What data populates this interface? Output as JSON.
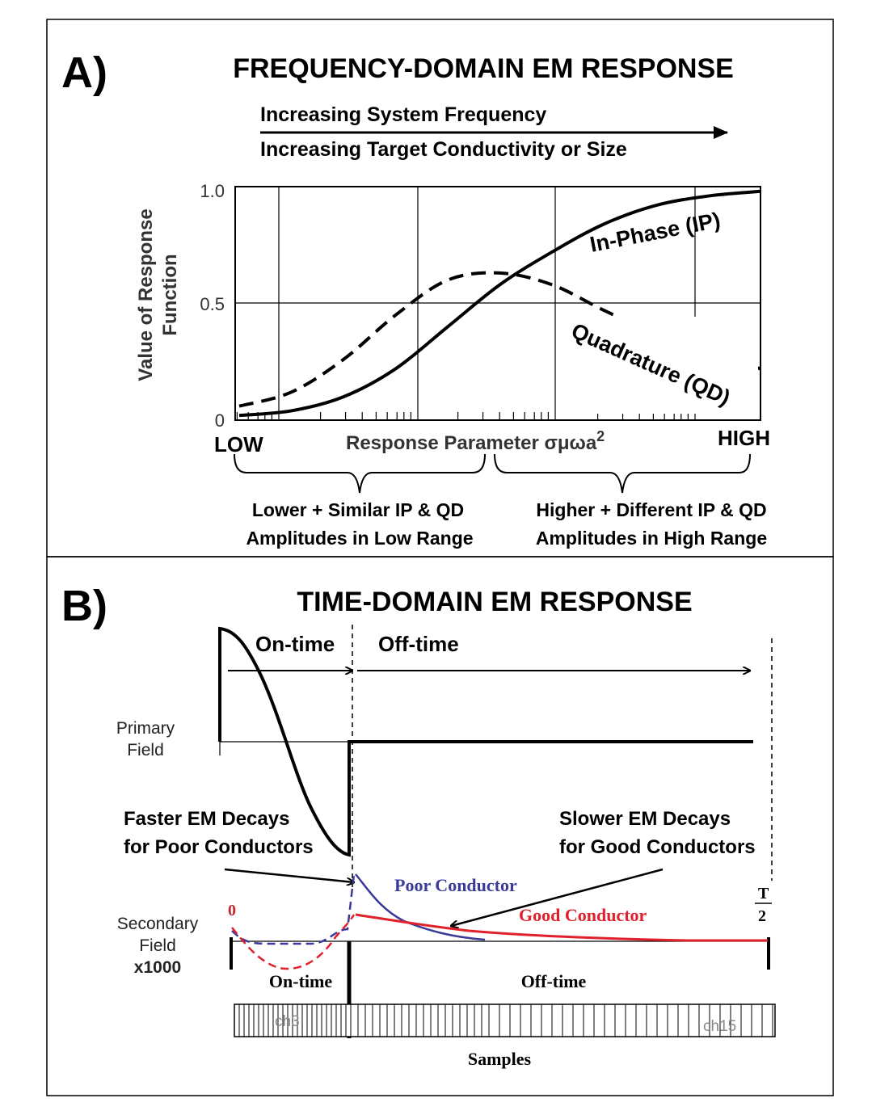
{
  "panel_a": {
    "label": "A)",
    "title": "FREQUENCY-DOMAIN EM RESPONSE",
    "arrow_line1": "Increasing System Frequency",
    "arrow_line2": "Increasing Target Conductivity or Size",
    "ylabel_line1": "Value of Response",
    "ylabel_line2": "Function",
    "yticks": [
      "1.0",
      "0.5",
      "0"
    ],
    "xlabel": "Response Parameter σμωa",
    "xlabel_sup": "2",
    "low_label": "LOW",
    "high_label": "HIGH",
    "ip_label": "In-Phase (IP)",
    "qd_label": "Quadrature (QD)",
    "low_range_line1": "Lower + Similar IP & QD",
    "low_range_line2": "Amplitudes in Low Range",
    "high_range_line1": "Higher + Different IP & QD",
    "high_range_line2": "Amplitudes in High Range"
  },
  "panel_b": {
    "label": "B)",
    "title": "TIME-DOMAIN EM RESPONSE",
    "on_time_top": "On-time",
    "off_time_top": "Off-time",
    "primary_line1": "Primary",
    "primary_line2": "Field",
    "faster_line1": "Faster EM Decays",
    "faster_line2": "for Poor Conductors",
    "slower_line1": "Slower EM Decays",
    "slower_line2": "for Good Conductors",
    "poor_label": "Poor Conductor",
    "good_label": "Good Conductor",
    "zero_label": "0",
    "t_num": "T",
    "t_den": "2",
    "secondary_line1": "Secondary",
    "secondary_line2": "Field",
    "secondary_line3": "x1000",
    "on_time_bottom": "On-time",
    "off_time_bottom": "Off-time",
    "ch3": "ch3",
    "ch15": "ch15",
    "samples": "Samples",
    "colors": {
      "poor": "#3b3b9a",
      "good": "#e0202a",
      "ink": "#000000"
    }
  },
  "chart_data": {
    "type": "line",
    "xlabel": "Response Parameter σμωa2",
    "ylabel": "Value of Response Function",
    "ylim": [
      0,
      1
    ],
    "x_scale": "log",
    "series": [
      {
        "name": "In-Phase (IP)",
        "x": [
          0,
          0.1,
          0.2,
          0.3,
          0.4,
          0.5,
          0.6,
          0.7,
          0.8,
          0.9,
          1.0
        ],
        "values": [
          0.02,
          0.04,
          0.1,
          0.22,
          0.4,
          0.58,
          0.72,
          0.84,
          0.92,
          0.96,
          0.98
        ]
      },
      {
        "name": "Quadrature (QD)",
        "x": [
          0,
          0.1,
          0.2,
          0.3,
          0.4,
          0.5,
          0.6,
          0.7,
          0.8,
          0.9,
          1.0
        ],
        "values": [
          0.06,
          0.12,
          0.26,
          0.45,
          0.6,
          0.63,
          0.58,
          0.47,
          0.37,
          0.29,
          0.22
        ]
      }
    ]
  }
}
